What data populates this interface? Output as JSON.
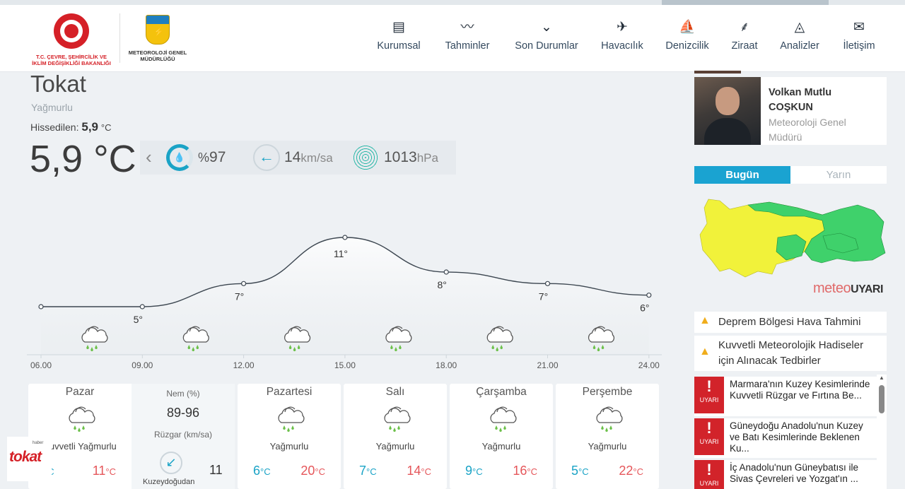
{
  "header": {
    "ministry_logo_text": "T.C. ÇEVRE, ŞEHİRCİLİK VE İKLİM DEĞİŞİKLİĞİ BAKANLIĞI",
    "mgm_logo_text": "METEOROLOJİ GENEL MÜDÜRLÜĞÜ",
    "nav": [
      {
        "label": "Kurumsal",
        "icon": "document-icon"
      },
      {
        "label": "Tahminler",
        "icon": "chart-icon"
      },
      {
        "label": "Son Durumlar",
        "icon": "circle-chevron-icon"
      },
      {
        "label": "Havacılık",
        "icon": "airplane-icon"
      },
      {
        "label": "Denizcilik",
        "icon": "sail-icon"
      },
      {
        "label": "Ziraat",
        "icon": "wheat-icon"
      },
      {
        "label": "Analizler",
        "icon": "analysis-icon"
      },
      {
        "label": "İletişim",
        "icon": "envelope-icon"
      }
    ]
  },
  "current": {
    "city": "Tokat",
    "condition": "Yağmurlu",
    "feels_label": "Hissedilen:",
    "feels_value": "5,9",
    "feels_unit": "°C",
    "temperature": "5,9 °C",
    "humidity_prefix": "%",
    "humidity": "97",
    "wind": "14",
    "wind_unit": "km/sa",
    "pressure": "1013",
    "pressure_unit": "hPa"
  },
  "chart_data": {
    "type": "line",
    "x": [
      "06.00",
      "09.00",
      "12.00",
      "15.00",
      "18.00",
      "21.00",
      "24.00"
    ],
    "values": [
      5,
      5,
      7,
      11,
      8,
      7,
      6
    ],
    "labels": [
      "",
      "5°",
      "7°",
      "11°",
      "8°",
      "7°",
      "6°"
    ],
    "icon": "rain-cloud-icon"
  },
  "days": [
    {
      "name": "Pazar",
      "cond": "Kuvvetli Yağmurlu",
      "lo": "",
      "hi": "11",
      "unit": "°C"
    },
    {
      "name": "Pazartesi",
      "cond": "Yağmurlu",
      "lo": "6",
      "hi": "20",
      "unit": "°C"
    },
    {
      "name": "Salı",
      "cond": "Yağmurlu",
      "lo": "7",
      "hi": "14",
      "unit": "°C"
    },
    {
      "name": "Çarşamba",
      "cond": "Yağmurlu",
      "lo": "9",
      "hi": "16",
      "unit": "°C"
    },
    {
      "name": "Perşembe",
      "cond": "Yağmurlu",
      "lo": "5",
      "hi": "22",
      "unit": "°C"
    }
  ],
  "today_extra": {
    "humidity_label": "Nem (%)",
    "humidity_value": "89-96",
    "wind_label": "Rüzgar (km/sa)",
    "wind_value": "11",
    "wind_dir": "Kuzeydoğudan"
  },
  "watermark": {
    "small": "haber",
    "big": "tokat"
  },
  "sidebar": {
    "director_name": "Volkan Mutlu COŞKUN",
    "director_title": "Meteoroloji Genel Müdürü",
    "tab_today": "Bugün",
    "tab_tomorrow": "Yarın",
    "meteouyari_a": "meteo",
    "meteouyari_b": "UYARI",
    "links": [
      "Deprem Bölgesi Hava Tahmini",
      "Kuvvetli Meteorolojik Hadiseler için Alınacak Tedbirler"
    ],
    "warning_badge": "UYARI",
    "warnings": [
      "Marmara'nın Kuzey Kesimlerinde Kuvvetli Rüzgar ve Fırtına Be...",
      "Güneydoğu Anadolu'nun Kuzey ve Batı Kesimlerinde Beklenen Ku...",
      "İç Anadolu'nun Güneybatısı ile Sivas Çevreleri ve Yozgat'ın ..."
    ]
  },
  "colors": {
    "accent": "#1aa3d1",
    "warm": "#e5565a",
    "cold": "#1aa3c6",
    "map_yellow": "#f1f23a",
    "map_green": "#3fd16b",
    "warning_red": "#d2232a"
  }
}
